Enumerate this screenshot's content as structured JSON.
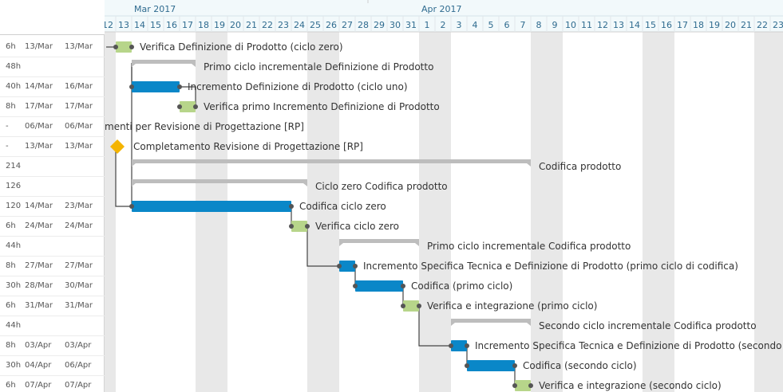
{
  "timeline": {
    "first_day": "12",
    "months": [
      {
        "label": "Mar 2017",
        "day_index": 2
      },
      {
        "label": "Apr 2017",
        "day_index": 20
      }
    ],
    "days": [
      "12",
      "13",
      "14",
      "15",
      "16",
      "17",
      "18",
      "19",
      "20",
      "21",
      "22",
      "23",
      "24",
      "25",
      "26",
      "27",
      "28",
      "29",
      "30",
      "31",
      "1",
      "2",
      "3",
      "4",
      "5",
      "6",
      "7",
      "8",
      "9",
      "10",
      "11",
      "12",
      "13",
      "14",
      "15",
      "16",
      "17",
      "18",
      "19",
      "20",
      "21",
      "22",
      "23"
    ],
    "weekend_indices": [
      0,
      6,
      7,
      13,
      14,
      20,
      21,
      27,
      28,
      34,
      35,
      41,
      42
    ]
  },
  "tasks": [
    {
      "duration": "6h",
      "start": "13/Mar",
      "end": "13/Mar",
      "kind": "check",
      "s": 1,
      "e": 2,
      "label": "Verifica Definizione di Prodotto (ciclo zero)"
    },
    {
      "duration": "48h",
      "start": "",
      "end": "",
      "kind": "summary",
      "s": 2,
      "e": 6,
      "label": "Primo ciclo incrementale Definizione di Prodotto"
    },
    {
      "duration": "40h",
      "start": "14/Mar",
      "end": "16/Mar",
      "kind": "task",
      "s": 2,
      "e": 5,
      "label": "Incremento Definizione di Prodotto (ciclo uno)"
    },
    {
      "duration": "8h",
      "start": "17/Mar",
      "end": "17/Mar",
      "kind": "check",
      "s": 5,
      "e": 6,
      "label": "Verifica primo Incremento Definizione di Prodotto"
    },
    {
      "duration": "-",
      "start": "06/Mar",
      "end": "06/Mar",
      "kind": "offscreen",
      "s": 0,
      "e": 0,
      "label": "menti per Revisione di Progettazione [RP]"
    },
    {
      "duration": "-",
      "start": "13/Mar",
      "end": "13/Mar",
      "kind": "milestone",
      "s": 1,
      "e": 1,
      "label": "Completamento Revisione di Progettazione [RP]"
    },
    {
      "duration": "214",
      "start": "",
      "end": "",
      "kind": "summary",
      "s": 2,
      "e": 27,
      "label": "Codifica prodotto"
    },
    {
      "duration": "126",
      "start": "",
      "end": "",
      "kind": "summary",
      "s": 2,
      "e": 13,
      "label": "Ciclo zero Codifica prodotto"
    },
    {
      "duration": "120",
      "start": "14/Mar",
      "end": "23/Mar",
      "kind": "task",
      "s": 2,
      "e": 12,
      "label": "Codifica ciclo zero"
    },
    {
      "duration": "6h",
      "start": "24/Mar",
      "end": "24/Mar",
      "kind": "check",
      "s": 12,
      "e": 13,
      "label": "Verifica ciclo zero"
    },
    {
      "duration": "44h",
      "start": "",
      "end": "",
      "kind": "summary",
      "s": 15,
      "e": 20,
      "label": "Primo ciclo incrementale Codifica prodotto"
    },
    {
      "duration": "8h",
      "start": "27/Mar",
      "end": "27/Mar",
      "kind": "task",
      "s": 15,
      "e": 16,
      "label": "Incremento Specifica Tecnica e Definizione di Prodotto (primo ciclo di codifica)"
    },
    {
      "duration": "30h",
      "start": "28/Mar",
      "end": "30/Mar",
      "kind": "task",
      "s": 16,
      "e": 19,
      "label": "Codifica (primo ciclo)"
    },
    {
      "duration": "6h",
      "start": "31/Mar",
      "end": "31/Mar",
      "kind": "check",
      "s": 19,
      "e": 20,
      "label": "Verifica e integrazione (primo ciclo)"
    },
    {
      "duration": "44h",
      "start": "",
      "end": "",
      "kind": "summary",
      "s": 22,
      "e": 27,
      "label": "Secondo ciclo incrementale Codifica prodotto"
    },
    {
      "duration": "8h",
      "start": "03/Apr",
      "end": "03/Apr",
      "kind": "task",
      "s": 22,
      "e": 23,
      "label": "Incremento Specifica Tecnica e Definizione di Prodotto (secondo"
    },
    {
      "duration": "30h",
      "start": "04/Apr",
      "end": "06/Apr",
      "kind": "task",
      "s": 23,
      "e": 26,
      "label": "Codifica (secondo ciclo)"
    },
    {
      "duration": "6h",
      "start": "07/Apr",
      "end": "07/Apr",
      "kind": "check",
      "s": 26,
      "e": 27,
      "label": "Verifica e integrazione (secondo ciclo)"
    }
  ],
  "links": [
    [
      1,
      2
    ],
    [
      3,
      2
    ],
    [
      5,
      8
    ],
    [
      8,
      9
    ],
    [
      9,
      11
    ],
    [
      11,
      12
    ],
    [
      12,
      13
    ],
    [
      13,
      15
    ],
    [
      15,
      16
    ],
    [
      16,
      17
    ]
  ],
  "colors": {
    "task": "#0a87c8",
    "check": "#b7d58a",
    "summary": "#bdbdbd",
    "milestone": "#f4b400",
    "weekend": "#e8e8e8",
    "header_bg": "#f2f9fb",
    "link": "#444444"
  }
}
